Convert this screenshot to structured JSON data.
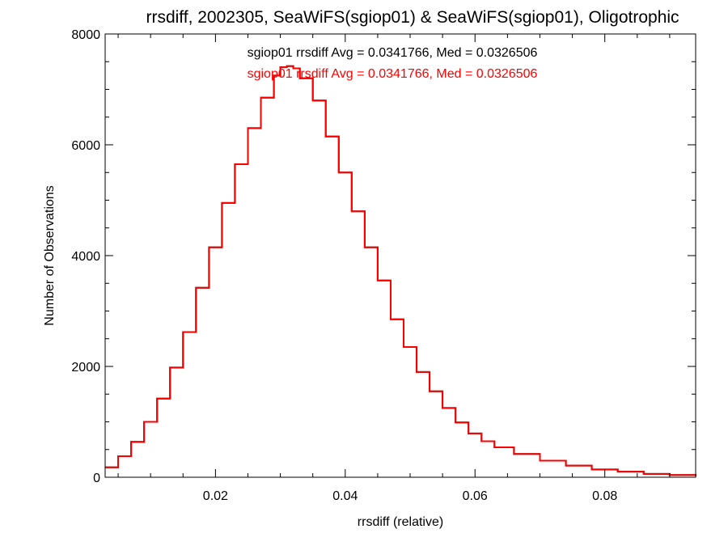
{
  "chart_data": {
    "type": "line",
    "step": true,
    "title": "rrsdiff, 2002305, SeaWiFS(sgiop01) & SeaWiFS(sgiop01), Oligotrophic",
    "xlabel": "rrsdiff (relative)",
    "ylabel": "Number of Observations",
    "xlim": [
      0.003,
      0.094
    ],
    "ylim": [
      0,
      8000
    ],
    "x_ticks": [
      0.02,
      0.04,
      0.06,
      0.08
    ],
    "x_tick_labels": [
      "0.02",
      "0.04",
      "0.06",
      "0.08"
    ],
    "y_ticks": [
      0,
      2000,
      4000,
      6000,
      8000
    ],
    "y_tick_labels": [
      "0",
      "2000",
      "4000",
      "6000",
      "8000"
    ],
    "annotations": [
      {
        "text": "sgiop01 rrsdiff Avg = 0.0341766, Med = 0.0326506",
        "color": "#000000"
      },
      {
        "text": "sgiop01 rrsdiff Avg = 0.0341766, Med = 0.0326506",
        "color": "#ff0000"
      }
    ],
    "series": [
      {
        "color": "#000000",
        "x": [
          0.003,
          0.005,
          0.007,
          0.009,
          0.011,
          0.013,
          0.015,
          0.017,
          0.019,
          0.021,
          0.023,
          0.025,
          0.027,
          0.029,
          0.03,
          0.031,
          0.032,
          0.033,
          0.035,
          0.037,
          0.039,
          0.041,
          0.043,
          0.045,
          0.047,
          0.049,
          0.051,
          0.053,
          0.055,
          0.057,
          0.059,
          0.061,
          0.063,
          0.066,
          0.07,
          0.074,
          0.078,
          0.082,
          0.086,
          0.09,
          0.094
        ],
        "y": [
          180,
          380,
          640,
          1000,
          1420,
          1980,
          2620,
          3420,
          4150,
          4950,
          5650,
          6300,
          6850,
          7250,
          7400,
          7420,
          7380,
          7200,
          6800,
          6150,
          5500,
          4800,
          4150,
          3550,
          2850,
          2350,
          1900,
          1550,
          1250,
          990,
          790,
          650,
          540,
          420,
          300,
          210,
          140,
          100,
          60,
          40,
          20
        ]
      },
      {
        "color": "#ff0000",
        "x": [
          0.003,
          0.005,
          0.007,
          0.009,
          0.011,
          0.013,
          0.015,
          0.017,
          0.019,
          0.021,
          0.023,
          0.025,
          0.027,
          0.029,
          0.03,
          0.031,
          0.032,
          0.033,
          0.035,
          0.037,
          0.039,
          0.041,
          0.043,
          0.045,
          0.047,
          0.049,
          0.051,
          0.053,
          0.055,
          0.057,
          0.059,
          0.061,
          0.063,
          0.066,
          0.07,
          0.074,
          0.078,
          0.082,
          0.086,
          0.09,
          0.094
        ],
        "y": [
          180,
          380,
          640,
          1000,
          1420,
          1980,
          2620,
          3420,
          4150,
          4950,
          5650,
          6300,
          6850,
          7250,
          7400,
          7420,
          7380,
          7200,
          6800,
          6150,
          5500,
          4800,
          4150,
          3550,
          2850,
          2350,
          1900,
          1550,
          1250,
          990,
          790,
          650,
          540,
          420,
          300,
          210,
          140,
          100,
          60,
          40,
          20
        ]
      }
    ]
  }
}
